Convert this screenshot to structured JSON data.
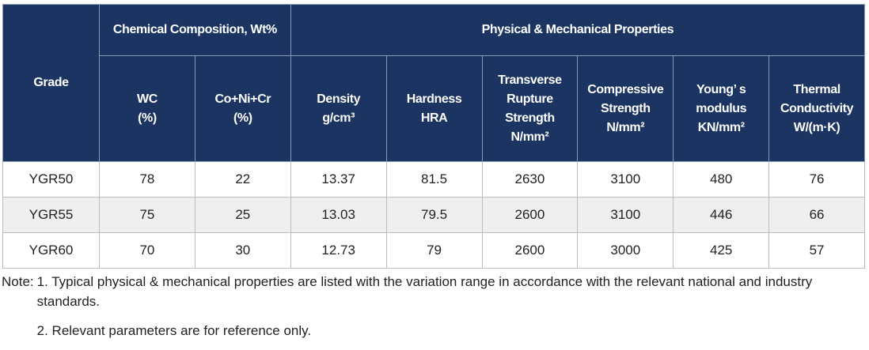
{
  "table": {
    "grade_header": "Grade",
    "groups": [
      "Chemical Composition, Wt%",
      "Physical & Mechanical Properties"
    ],
    "columns": [
      "WC\n(%)",
      "Co+Ni+Cr\n(%)",
      "Density\ng/cm³",
      "Hardness\nHRA",
      "Transverse\nRupture\nStrength\nN/mm²",
      "Compressive\nStrength\nN/mm²",
      "Young’ s\nmodulus\nKN/mm²",
      "Thermal\nConductivity\nW/(m·K)"
    ],
    "rows": [
      [
        "YGR50",
        "78",
        "22",
        "13.37",
        "81.5",
        "2630",
        "3100",
        "480",
        "76"
      ],
      [
        "YGR55",
        "75",
        "25",
        "13.03",
        "79.5",
        "2600",
        "3100",
        "446",
        "66"
      ],
      [
        "YGR60",
        "70",
        "30",
        "12.73",
        "79",
        "2600",
        "3000",
        "425",
        "57"
      ]
    ]
  },
  "notes": {
    "label": "Note:",
    "items": [
      "1. Typical physical & mechanical properties are listed with the variation range in accordance with the relevant national and industry standards.",
      "2. Relevant parameters are for reference only."
    ]
  }
}
